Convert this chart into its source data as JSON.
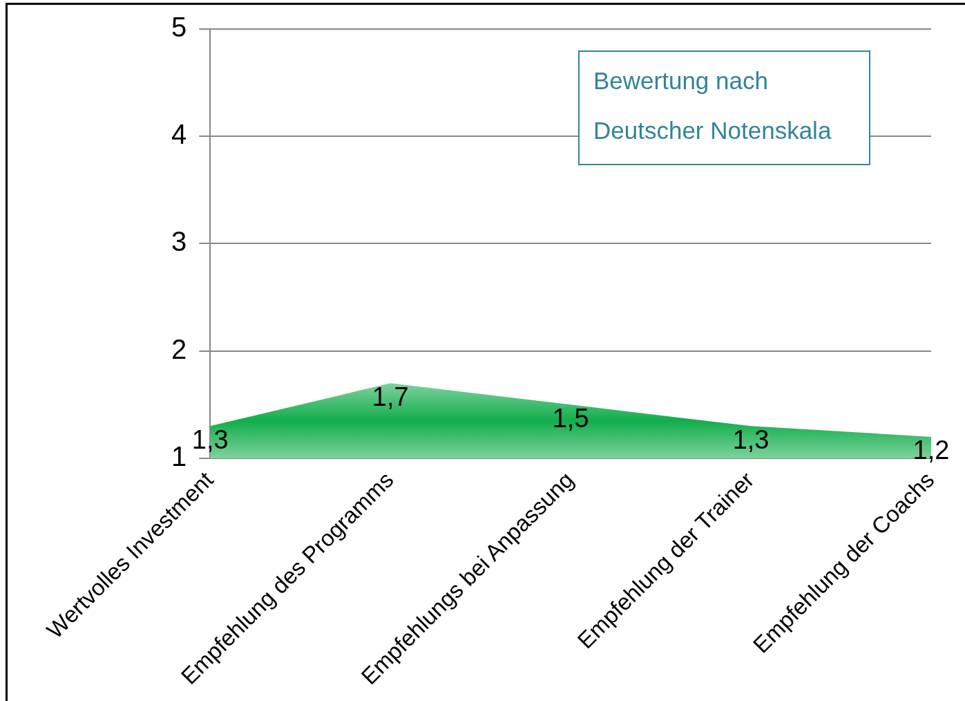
{
  "chart_data": {
    "type": "area",
    "categories": [
      "Wertvolles Investment",
      "Empfehlung des Programms",
      "Empfehlungs bei Anpassung",
      "Empfehlung der Trainer",
      "Empfehlung der Coachs"
    ],
    "values": [
      1.3,
      1.7,
      1.5,
      1.3,
      1.2
    ],
    "value_labels": [
      "1,3",
      "1,7",
      "1,5",
      "1,3",
      "1,2"
    ],
    "color": "#12ad4c",
    "ylim": [
      1,
      5
    ],
    "yticks": [
      1,
      2,
      3,
      4,
      5
    ],
    "grid": "y",
    "legend": false,
    "annotations": [
      "Bewertung nach Deutscher Notenskala"
    ]
  }
}
